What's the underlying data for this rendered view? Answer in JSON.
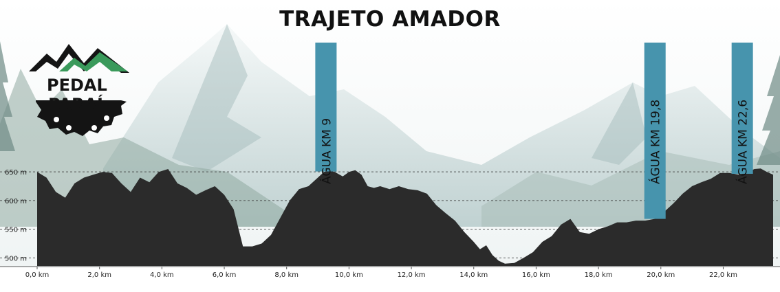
{
  "chart_data": {
    "type": "area",
    "title": "TRAJETO AMADOR",
    "xlabel": "",
    "ylabel": "",
    "xlim": [
      0,
      23.6
    ],
    "ylim": [
      486,
      655
    ],
    "x_ticks": [
      0,
      2,
      4,
      6,
      8,
      10,
      12,
      14,
      16,
      18,
      20,
      22
    ],
    "x_tick_labels": [
      "0,0 km",
      "2,0 km",
      "4,0 km",
      "6,0 km",
      "8,0 km",
      "10,0 km",
      "12,0 km",
      "14,0 km",
      "16,0 km",
      "18,0 km",
      "20,0 km",
      "22,0 km"
    ],
    "y_ticks": [
      500,
      550,
      600,
      650
    ],
    "y_tick_labels": [
      "500 m",
      "550 m",
      "600 m",
      "650 m"
    ],
    "grid": "horizontal dashed",
    "fill_color": "#2b2b2b",
    "marker_color": "#4794ad",
    "series": [
      {
        "x": [
          0,
          0.3,
          0.6,
          0.9,
          1.2,
          1.5,
          1.8,
          2.1,
          2.4,
          2.7,
          3.0,
          3.3,
          3.6,
          3.9,
          4.2,
          4.5,
          4.8,
          5.1,
          5.4,
          5.7,
          6.0,
          6.3,
          6.6,
          6.9,
          7.2,
          7.5,
          7.8,
          8.1,
          8.4,
          8.7,
          9.0,
          9.2,
          9.4,
          9.6,
          9.8,
          10.0,
          10.2,
          10.4,
          10.6,
          10.8,
          11.0,
          11.3,
          11.6,
          11.9,
          12.2,
          12.5,
          12.8,
          13.1,
          13.4,
          13.7,
          14.0,
          14.2,
          14.4,
          14.6,
          14.8,
          15.0,
          15.3,
          15.6,
          15.9,
          16.2,
          16.5,
          16.8,
          17.1,
          17.4,
          17.7,
          18.0,
          18.3,
          18.6,
          18.9,
          19.2,
          19.5,
          19.8,
          20.1,
          20.4,
          20.7,
          21.0,
          21.3,
          21.6,
          21.9,
          22.2,
          22.5,
          22.8,
          23.0,
          23.2,
          23.4,
          23.6
        ],
        "y": [
          650,
          640,
          615,
          605,
          630,
          640,
          645,
          650,
          648,
          630,
          615,
          640,
          632,
          650,
          655,
          630,
          622,
          610,
          618,
          625,
          610,
          585,
          520,
          520,
          525,
          540,
          570,
          600,
          620,
          625,
          640,
          650,
          653,
          648,
          642,
          650,
          653,
          645,
          625,
          622,
          625,
          620,
          625,
          620,
          618,
          612,
          592,
          578,
          565,
          545,
          528,
          515,
          522,
          505,
          495,
          490,
          491,
          500,
          510,
          528,
          538,
          558,
          568,
          545,
          542,
          550,
          555,
          562,
          562,
          565,
          565,
          568,
          580,
          595,
          612,
          625,
          632,
          638,
          648,
          648,
          645,
          650,
          655,
          656,
          650,
          645
        ]
      }
    ],
    "annotations": [
      {
        "x": 9.25,
        "label": "ÁGUA KM 9"
      },
      {
        "x": 19.8,
        "label": "ÁGUA KM 19,8"
      },
      {
        "x": 22.6,
        "label": "ÁGUA KM 22,6"
      }
    ]
  },
  "logo": {
    "line1": "PEDAL",
    "line2": "PARAÍ"
  }
}
